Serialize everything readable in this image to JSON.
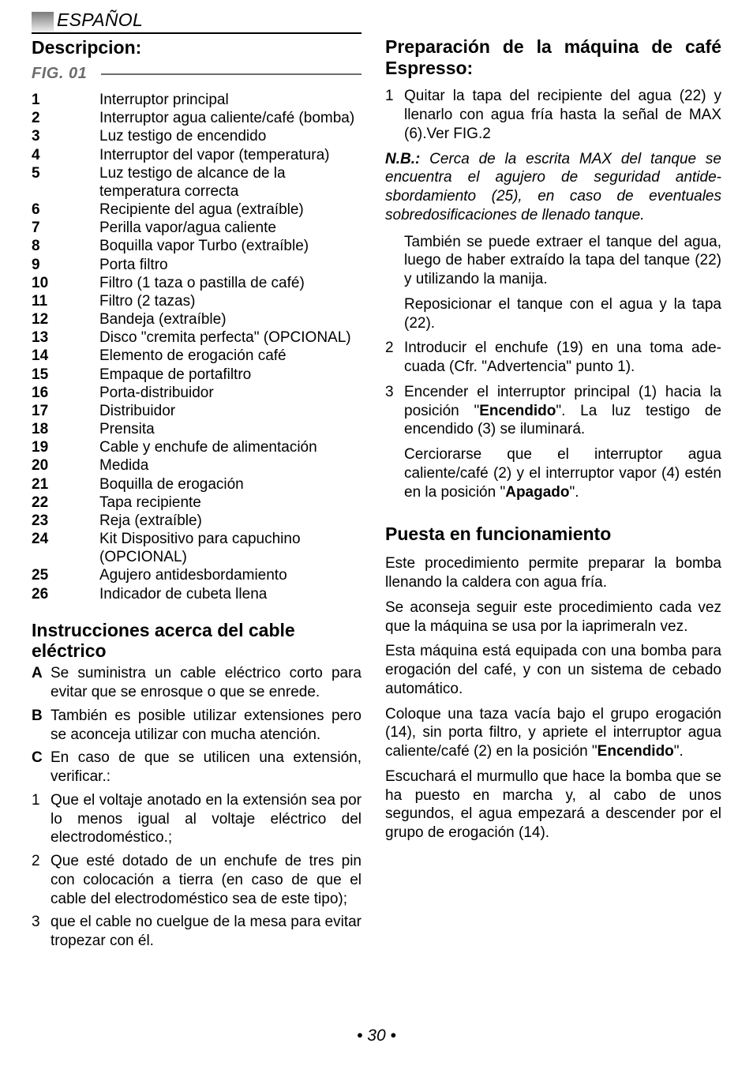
{
  "langHeader": "ESPAÑOL",
  "descTitle": "Descripcion:",
  "figLabel": "FIG. 01",
  "parts": [
    {
      "n": "1",
      "t": "Interruptor principal"
    },
    {
      "n": "2",
      "t": "Interruptor agua caliente/café (bomba)"
    },
    {
      "n": "3",
      "t": "Luz testigo de encendido"
    },
    {
      "n": "4",
      "t": "Interruptor del vapor (temperatura)"
    },
    {
      "n": "5",
      "t": "Luz testigo de alcance de la temperatura correcta"
    },
    {
      "n": "6",
      "t": "Recipiente del agua (extraíble)"
    },
    {
      "n": "7",
      "t": "Perilla vapor/agua caliente"
    },
    {
      "n": "8",
      "t": "Boquilla vapor Turbo (extraíble)"
    },
    {
      "n": "9",
      "t": "Porta filtro"
    },
    {
      "n": "10",
      "t": "Filtro (1 taza o pastilla de café)"
    },
    {
      "n": "11",
      "t": "Filtro (2 tazas)"
    },
    {
      "n": "12",
      "t": "Bandeja (extraíble)"
    },
    {
      "n": "13",
      "t": "Disco \"cremita perfecta\" (OPCIONAL)"
    },
    {
      "n": "14",
      "t": "Elemento de erogación café"
    },
    {
      "n": "15",
      "t": "Empaque de portafiltro"
    },
    {
      "n": "16",
      "t": "Porta-distribuidor"
    },
    {
      "n": "17",
      "t": "Distribuidor"
    },
    {
      "n": "18",
      "t": "Prensita"
    },
    {
      "n": "19",
      "t": "Cable y enchufe de alimentación"
    },
    {
      "n": "20",
      "t": "Medida"
    },
    {
      "n": "21",
      "t": "Boquilla de erogación"
    },
    {
      "n": "22",
      "t": "Tapa recipiente"
    },
    {
      "n": "23",
      "t": "Reja (extraíble)"
    },
    {
      "n": "24",
      "t": "Kit Dispositivo para capuchino (OPCIONAL)"
    },
    {
      "n": "25",
      "t": "Agujero antidesbordamiento"
    },
    {
      "n": "26",
      "t": "Indicador de cubeta llena"
    }
  ],
  "instrTitle": "Instrucciones acerca del cable eléctrico",
  "instrLettered": [
    {
      "m": "A",
      "t": "Se suministra un cable eléctrico corto para evitar que se enrosque o que se enrede."
    },
    {
      "m": "B",
      "t": "También es posible utilizar extensiones pero se aconceja utilizar con mucha atención."
    },
    {
      "m": "C",
      "t": "En caso de que se utilicen una extensión, verificar.:"
    }
  ],
  "instrNumbered": [
    {
      "m": "1",
      "t": "Que el voltaje anotado en la extensión sea por lo menos igual al voltaje eléctrico del electrodoméstico.;"
    },
    {
      "m": "2",
      "t": "Que esté dotado de un enchufe de tres pin con colocación a tierra (en caso de que el cable del electrodoméstico sea de este tipo);"
    },
    {
      "m": "3",
      "t": "que el cable no cuelgue de la mesa para evitar tropezar con él."
    }
  ],
  "prepTitle": "Preparación de la máquina de café Espresso:",
  "prepStep1": "Quitar la tapa del recipiente del agua (22) y llenarlo con agua fría hasta la señal de MAX (6).Ver FIG.2",
  "nbLabel": "N.B.:",
  "nbText": " Cerca de la escrita MAX del tanque se encuentra el agujero de seguridad antide­sbordamiento (25), en caso de eventuales sobredosificaciones de llenado tanque.",
  "prepIndent1": "También se puede extraer el tanque del agua, luego de haber extraído la tapa del tanque (22) y utilizando la manija.",
  "prepIndent2": "Reposicionar el tanque con el agua y la tapa (22).",
  "prepStep2": "Introducir el enchufe (19) en una toma ade­cuada (Cfr. \"Advertencia\" punto 1).",
  "prepStep3a": "Encender el interruptor principal (1) hacia la posición \"",
  "prepStep3Bold1": "Encendido",
  "prepStep3b": "\". La luz testigo de encendido (3) se iluminará.",
  "prepIndent3a": "Cerciorarse que el interruptor agua caliente/café (2) y el interruptor vapor (4) estén en la posición \"",
  "prepIndent3Bold": "Apagado",
  "prepIndent3b": "\".",
  "puestaTitle": "Puesta en funcionamiento",
  "puestaP1": "Este procedimiento permite preparar la bomba llenando la caldera con agua fría.",
  "puestaP2": "Se aconseja seguir este procedimiento cada vez que la máquina se usa por la iaprimeraln vez.",
  "puestaP3": "Esta máquina está equipada con una bomba para erogación del café, y con un sistema de cebado automático.",
  "puestaP4a": "Coloque una taza vacía bajo el grupo ero­gación (14), sin porta filtro, y apriete el inter­ruptor agua caliente/café (2) en la posición \"",
  "puestaP4Bold": "Encendido",
  "puestaP4b": "\".",
  "puestaP5": "Escuchará el murmullo que hace la bomba que se ha puesto en marcha y, al cabo de unos segundos, el agua empezará a descender por el grupo de erogación (14).",
  "pageNum": "• 30 •"
}
